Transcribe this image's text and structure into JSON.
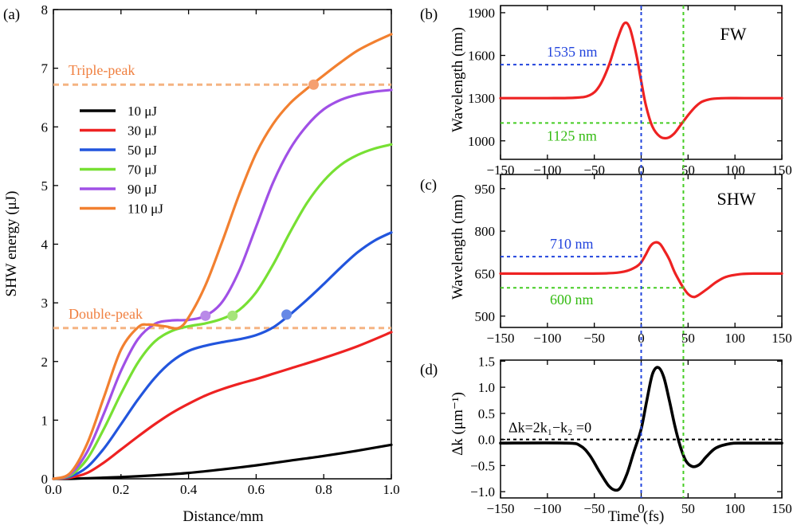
{
  "chart_data": [
    {
      "panel": "(a)",
      "type": "line",
      "xlabel": "Distance/mm",
      "ylabel": "SHW energy (μJ)",
      "xlim": [
        0,
        1
      ],
      "ylim": [
        0,
        8
      ],
      "xticks": [
        0,
        0.2,
        0.4,
        0.6,
        0.8,
        1.0
      ],
      "xtick_labels": [
        "0.0",
        "0.2",
        "0.4",
        "0.6",
        "0.8",
        "1.0"
      ],
      "yticks": [
        0,
        1,
        2,
        3,
        4,
        5,
        6,
        7,
        8
      ],
      "ytick_labels": [
        "0",
        "1",
        "2",
        "3",
        "4",
        "5",
        "6",
        "7",
        "8"
      ],
      "reference_lines": [
        {
          "label": "Triple-peak",
          "y": 6.72,
          "color": "#F5B482"
        },
        {
          "label": "Double-peak",
          "y": 2.57,
          "color": "#F5B482"
        }
      ],
      "series": [
        {
          "name": "10 μJ",
          "color": "#000000",
          "x": [
            0,
            0.05,
            0.1,
            0.2,
            0.3,
            0.4,
            0.5,
            0.6,
            0.7,
            0.8,
            0.9,
            1.0
          ],
          "y": [
            0,
            0,
            0.01,
            0.03,
            0.06,
            0.1,
            0.16,
            0.23,
            0.31,
            0.39,
            0.48,
            0.58
          ]
        },
        {
          "name": "30 μJ",
          "color": "#EE2222",
          "x": [
            0,
            0.05,
            0.1,
            0.15,
            0.2,
            0.25,
            0.3,
            0.35,
            0.4,
            0.45,
            0.5,
            0.55,
            0.6,
            0.65,
            0.7,
            0.8,
            0.9,
            1.0
          ],
          "y": [
            0,
            0.02,
            0.1,
            0.28,
            0.5,
            0.72,
            0.93,
            1.12,
            1.28,
            1.42,
            1.53,
            1.62,
            1.7,
            1.79,
            1.88,
            2.06,
            2.26,
            2.5
          ]
        },
        {
          "name": "50 μJ",
          "color": "#2255DD",
          "x": [
            0,
            0.05,
            0.1,
            0.15,
            0.2,
            0.25,
            0.3,
            0.35,
            0.4,
            0.45,
            0.5,
            0.55,
            0.6,
            0.65,
            0.7,
            0.75,
            0.8,
            0.85,
            0.9,
            0.95,
            1.0
          ],
          "y": [
            0,
            0.04,
            0.2,
            0.52,
            0.93,
            1.35,
            1.72,
            2.0,
            2.18,
            2.27,
            2.33,
            2.38,
            2.45,
            2.58,
            2.8,
            3.05,
            3.32,
            3.6,
            3.86,
            4.06,
            4.2
          ]
        },
        {
          "name": "70 μJ",
          "color": "#77E033",
          "x": [
            0,
            0.05,
            0.1,
            0.15,
            0.2,
            0.25,
            0.3,
            0.35,
            0.4,
            0.45,
            0.5,
            0.55,
            0.6,
            0.65,
            0.7,
            0.75,
            0.8,
            0.85,
            0.9,
            0.95,
            1.0
          ],
          "y": [
            0,
            0.06,
            0.34,
            0.86,
            1.45,
            1.98,
            2.34,
            2.52,
            2.6,
            2.65,
            2.73,
            2.88,
            3.18,
            3.65,
            4.2,
            4.7,
            5.08,
            5.35,
            5.52,
            5.63,
            5.7
          ]
        },
        {
          "name": "90 μJ",
          "color": "#A050E6",
          "x": [
            0,
            0.05,
            0.1,
            0.15,
            0.2,
            0.25,
            0.3,
            0.35,
            0.4,
            0.45,
            0.5,
            0.55,
            0.6,
            0.65,
            0.7,
            0.75,
            0.8,
            0.85,
            0.9,
            0.95,
            1.0
          ],
          "y": [
            0,
            0.08,
            0.46,
            1.12,
            1.84,
            2.38,
            2.64,
            2.7,
            2.71,
            2.78,
            3.02,
            3.55,
            4.3,
            5.05,
            5.62,
            6.02,
            6.3,
            6.46,
            6.55,
            6.6,
            6.63
          ]
        },
        {
          "name": "110 μJ",
          "color": "#F28030",
          "x": [
            0,
            0.05,
            0.1,
            0.15,
            0.2,
            0.25,
            0.28,
            0.33,
            0.37,
            0.4,
            0.45,
            0.5,
            0.55,
            0.6,
            0.65,
            0.7,
            0.75,
            0.8,
            0.85,
            0.9,
            0.95,
            1.0
          ],
          "y": [
            0,
            0.1,
            0.6,
            1.4,
            2.2,
            2.58,
            2.63,
            2.6,
            2.57,
            2.75,
            3.3,
            4.05,
            4.85,
            5.55,
            6.05,
            6.4,
            6.65,
            6.88,
            7.1,
            7.3,
            7.45,
            7.58
          ]
        }
      ],
      "markers": [
        {
          "x": 0.45,
          "y": 2.78,
          "color": "#B98AE8"
        },
        {
          "x": 0.53,
          "y": 2.78,
          "color": "#A6E47A"
        },
        {
          "x": 0.69,
          "y": 2.8,
          "color": "#6688E6"
        },
        {
          "x": 0.77,
          "y": 6.72,
          "color": "#F5A070"
        }
      ]
    },
    {
      "panel": "(b)",
      "type": "line",
      "title": "FW",
      "xlabel": "",
      "ylabel": "Wavelength (nm)",
      "xlim": [
        -150,
        150
      ],
      "ylim": [
        870,
        1950
      ],
      "xticks": [
        -150,
        -100,
        -50,
        0,
        50,
        100,
        150
      ],
      "xtick_labels": [
        "−150",
        "−100",
        "−50",
        "0",
        "50",
        "100",
        "150"
      ],
      "yticks": [
        1000,
        1300,
        1600,
        1900
      ],
      "ytick_labels": [
        "1000",
        "1300",
        "1600",
        "1900"
      ],
      "annotations": [
        {
          "text": "1535 nm",
          "y": 1535,
          "color": "#2244DD"
        },
        {
          "text": "1125 nm",
          "y": 1125,
          "color": "#33BB11"
        }
      ],
      "series": [
        {
          "name": "FW",
          "color": "#EE2222",
          "x": [
            -150,
            -100,
            -70,
            -55,
            -45,
            -35,
            -25,
            -18,
            -12,
            -5,
            0,
            5,
            12,
            20,
            28,
            35,
            42,
            50,
            58,
            65,
            75,
            90,
            110,
            150
          ],
          "y": [
            1300,
            1300,
            1303,
            1320,
            1380,
            1520,
            1720,
            1825,
            1790,
            1600,
            1420,
            1250,
            1100,
            1030,
            1020,
            1050,
            1110,
            1180,
            1240,
            1275,
            1294,
            1300,
            1300,
            1300
          ]
        }
      ]
    },
    {
      "panel": "(c)",
      "type": "line",
      "title": "SHW",
      "xlabel": "",
      "ylabel": "Wavelength (nm)",
      "xlim": [
        -150,
        150
      ],
      "ylim": [
        460,
        1000
      ],
      "xticks": [
        -150,
        -100,
        -50,
        0,
        50,
        100,
        150
      ],
      "xtick_labels": [
        "−150",
        "−100",
        "−50",
        "0",
        "50",
        "100",
        "150"
      ],
      "yticks": [
        500,
        650,
        800,
        950
      ],
      "ytick_labels": [
        "500",
        "650",
        "800",
        "950"
      ],
      "annotations": [
        {
          "text": "710 nm",
          "y": 710,
          "color": "#2244DD"
        },
        {
          "text": "600 nm",
          "y": 600,
          "color": "#33BB11"
        }
      ],
      "series": [
        {
          "name": "SHW",
          "color": "#EE2222",
          "x": [
            -150,
            -60,
            -30,
            -15,
            -5,
            0,
            5,
            10,
            15,
            20,
            25,
            30,
            35,
            40,
            45,
            50,
            55,
            60,
            70,
            80,
            90,
            105,
            120,
            150
          ],
          "y": [
            650,
            650,
            652,
            660,
            675,
            690,
            718,
            748,
            760,
            755,
            730,
            700,
            660,
            628,
            600,
            578,
            568,
            572,
            595,
            620,
            638,
            648,
            650,
            650
          ]
        }
      ]
    },
    {
      "panel": "(d)",
      "type": "line",
      "xlabel": "Time (fs)",
      "ylabel": "Δk (μm⁻¹)",
      "xlim": [
        -150,
        150
      ],
      "ylim": [
        -1.12,
        1.52
      ],
      "xticks": [
        -150,
        -100,
        -50,
        0,
        50,
        100,
        150
      ],
      "xtick_labels": [
        "−150",
        "−100",
        "−50",
        "0",
        "50",
        "100",
        "150"
      ],
      "yticks": [
        -1.0,
        -0.5,
        0.0,
        0.5,
        1.0,
        1.5
      ],
      "ytick_labels": [
        "−1.0",
        "−0.5",
        "0.0",
        "0.5",
        "1.0",
        "1.5"
      ],
      "zero_line_label": "Δk=2k₁−k₂ =0",
      "series": [
        {
          "name": "Δk",
          "color": "#000000",
          "x": [
            -150,
            -80,
            -65,
            -55,
            -45,
            -35,
            -28,
            -22,
            -15,
            -8,
            0,
            6,
            12,
            18,
            24,
            30,
            36,
            42,
            48,
            55,
            62,
            70,
            80,
            95,
            110,
            150
          ],
          "y": [
            -0.07,
            -0.07,
            -0.12,
            -0.3,
            -0.6,
            -0.88,
            -0.97,
            -0.92,
            -0.65,
            -0.25,
            0.2,
            0.75,
            1.25,
            1.38,
            1.2,
            0.75,
            0.25,
            -0.15,
            -0.42,
            -0.52,
            -0.48,
            -0.32,
            -0.16,
            -0.08,
            -0.07,
            -0.07
          ]
        }
      ]
    }
  ],
  "guides": {
    "blue_time_fs": 0,
    "green_time_fs": 45,
    "blue_color": "#2244DD",
    "green_color": "#44CC22"
  }
}
